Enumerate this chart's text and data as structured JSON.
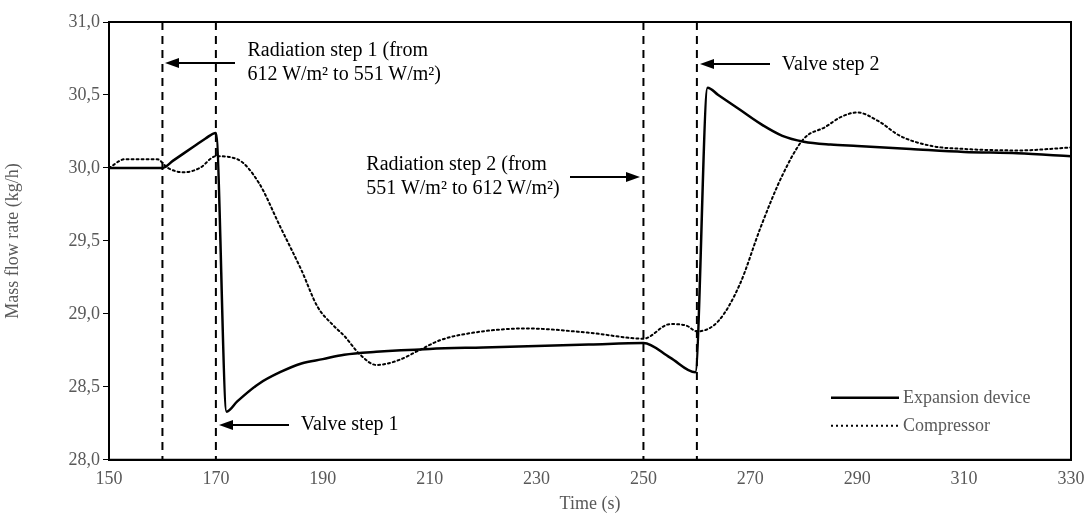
{
  "chart_data": {
    "type": "line",
    "xlabel": "Time (s)",
    "ylabel": "Mass flow rate (kg/h)",
    "xlim": [
      150,
      330
    ],
    "xticks": [
      150,
      170,
      190,
      210,
      230,
      250,
      270,
      290,
      310,
      330
    ],
    "ylim": [
      28,
      31
    ],
    "yticks": [
      {
        "value": 28,
        "label": "28,0"
      },
      {
        "value": 28.5,
        "label": "28,5"
      },
      {
        "value": 29,
        "label": "29,0"
      },
      {
        "value": 29.5,
        "label": "29,5"
      },
      {
        "value": 30,
        "label": "30,0"
      },
      {
        "value": 30.5,
        "label": "30,5"
      },
      {
        "value": 31,
        "label": "31,0"
      }
    ],
    "grid": false,
    "legend": "bottom right",
    "marker": "none",
    "series": [
      {
        "name": "Expansion device",
        "color": "#000000",
        "line_style": "solid",
        "x": [
          150,
          160,
          162,
          166,
          168,
          170,
          172,
          174,
          178,
          182,
          186,
          190,
          194,
          200,
          210,
          220,
          230,
          240,
          250,
          255,
          259.7,
          262,
          264,
          268,
          272,
          276,
          280,
          285,
          290,
          300,
          310,
          320,
          330
        ],
        "values": [
          30.0,
          30.0,
          30.05,
          30.15,
          30.2,
          30.24,
          28.33,
          28.4,
          28.52,
          28.6,
          28.66,
          28.69,
          28.72,
          28.74,
          28.76,
          28.77,
          28.78,
          28.79,
          28.8,
          28.7,
          28.6,
          30.55,
          30.5,
          30.4,
          30.3,
          30.22,
          30.18,
          30.16,
          30.15,
          30.13,
          30.11,
          30.1,
          30.08
        ]
      },
      {
        "name": "Compressor",
        "color": "#000000",
        "line_style": "dotted",
        "x": [
          150,
          153,
          159,
          161,
          164,
          167,
          170,
          174,
          178,
          182,
          186,
          189,
          192,
          194,
          197,
          200,
          204,
          208,
          212,
          218,
          228,
          240,
          250,
          255,
          258,
          260,
          264,
          268,
          272,
          276,
          280,
          284,
          287,
          290,
          294,
          298,
          304,
          310,
          320,
          330
        ],
        "values": [
          30.0,
          30.06,
          30.06,
          30.0,
          29.97,
          30.0,
          30.08,
          30.06,
          29.9,
          29.6,
          29.3,
          29.05,
          28.92,
          28.85,
          28.72,
          28.65,
          28.68,
          28.75,
          28.82,
          28.87,
          28.9,
          28.87,
          28.83,
          28.93,
          28.92,
          28.88,
          28.95,
          29.2,
          29.6,
          29.95,
          30.2,
          30.28,
          30.35,
          30.38,
          30.32,
          30.22,
          30.15,
          30.13,
          30.12,
          30.14
        ]
      }
    ],
    "ref_lines": [
      {
        "axis": "x",
        "value": 160,
        "color": "#000000",
        "line_style": "dashed"
      },
      {
        "axis": "x",
        "value": 170,
        "color": "#000000",
        "line_style": "dashed"
      },
      {
        "axis": "x",
        "value": 250,
        "color": "#000000",
        "line_style": "dashed"
      },
      {
        "axis": "x",
        "value": 260,
        "color": "#000000",
        "line_style": "dashed"
      }
    ],
    "annotations": [
      "Radiation step 1 (from\n612 W/m² to 551 W/m²)",
      "Radiation step 2 (from\n551 W/m² to 612 W/m²)",
      "Valve step 1",
      "Valve step 2"
    ]
  }
}
